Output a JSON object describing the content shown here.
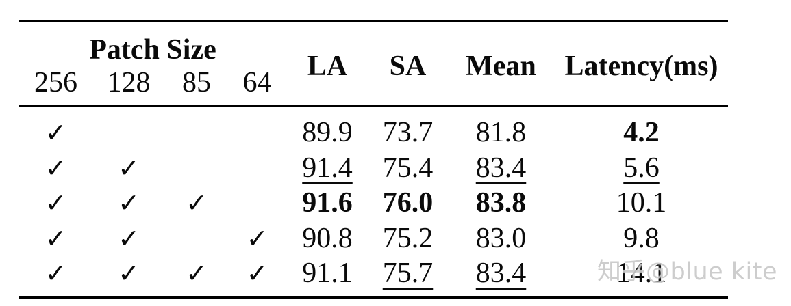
{
  "header": {
    "group_label": "Patch Size",
    "patch_sizes": [
      "256",
      "128",
      "85",
      "64"
    ],
    "metrics": [
      "LA",
      "SA",
      "Mean",
      "Latency(ms)"
    ]
  },
  "check_glyph": "✓",
  "rows": [
    {
      "checks": [
        true,
        false,
        false,
        false
      ],
      "values": [
        {
          "text": "89.9",
          "style": "plain"
        },
        {
          "text": "73.7",
          "style": "plain"
        },
        {
          "text": "81.8",
          "style": "plain"
        },
        {
          "text": "4.2",
          "style": "bold"
        }
      ]
    },
    {
      "checks": [
        true,
        true,
        false,
        false
      ],
      "values": [
        {
          "text": "91.4",
          "style": "underline"
        },
        {
          "text": "75.4",
          "style": "plain"
        },
        {
          "text": "83.4",
          "style": "underline"
        },
        {
          "text": "5.6",
          "style": "underline"
        }
      ]
    },
    {
      "checks": [
        true,
        true,
        true,
        false
      ],
      "values": [
        {
          "text": "91.6",
          "style": "bold"
        },
        {
          "text": "76.0",
          "style": "bold"
        },
        {
          "text": "83.8",
          "style": "bold"
        },
        {
          "text": "10.1",
          "style": "plain"
        }
      ]
    },
    {
      "checks": [
        true,
        true,
        false,
        true
      ],
      "values": [
        {
          "text": "90.8",
          "style": "plain"
        },
        {
          "text": "75.2",
          "style": "plain"
        },
        {
          "text": "83.0",
          "style": "plain"
        },
        {
          "text": "9.8",
          "style": "plain"
        }
      ]
    },
    {
      "checks": [
        true,
        true,
        true,
        true
      ],
      "values": [
        {
          "text": "91.1",
          "style": "plain"
        },
        {
          "text": "75.7",
          "style": "underline"
        },
        {
          "text": "83.4",
          "style": "underline"
        },
        {
          "text": "14.1",
          "style": "plain"
        }
      ]
    }
  ],
  "watermark": {
    "text": "知乎@blue kite",
    "color": "#c9c9c9"
  },
  "colors": {
    "text": "#0a0a0a",
    "rule": "#000000",
    "background": "#ffffff"
  },
  "chart_data": {
    "type": "table",
    "column_group": {
      "label": "Patch Size",
      "columns": [
        "256",
        "128",
        "85",
        "64"
      ]
    },
    "columns": [
      "256",
      "128",
      "85",
      "64",
      "LA",
      "SA",
      "Mean",
      "Latency(ms)"
    ],
    "rows": [
      [
        "✓",
        "",
        "",
        "",
        "89.9",
        "73.7",
        "81.8",
        "4.2"
      ],
      [
        "✓",
        "✓",
        "",
        "",
        "91.4",
        "75.4",
        "83.4",
        "5.6"
      ],
      [
        "✓",
        "✓",
        "✓",
        "",
        "91.6",
        "76.0",
        "83.8",
        "10.1"
      ],
      [
        "✓",
        "✓",
        "",
        "✓",
        "90.8",
        "75.2",
        "83.0",
        "9.8"
      ],
      [
        "✓",
        "✓",
        "✓",
        "✓",
        "91.1",
        "75.7",
        "83.4",
        "14.1"
      ]
    ],
    "bold_cells": [
      [
        0,
        "Latency(ms)"
      ],
      [
        2,
        "LA"
      ],
      [
        2,
        "SA"
      ],
      [
        2,
        "Mean"
      ]
    ],
    "underlined_cells": [
      [
        1,
        "LA"
      ],
      [
        1,
        "Mean"
      ],
      [
        1,
        "Latency(ms)"
      ],
      [
        4,
        "SA"
      ],
      [
        4,
        "Mean"
      ]
    ]
  }
}
